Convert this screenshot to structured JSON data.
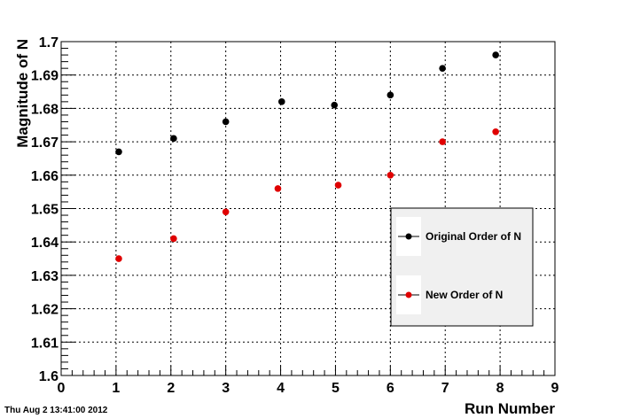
{
  "timestamp": "Thu Aug  2 13:41:00 2012",
  "chart_data": {
    "type": "scatter",
    "title": "",
    "xlabel": "Run Number",
    "ylabel": "Magnitude of N",
    "xlim": [
      0,
      9
    ],
    "ylim": [
      1.6,
      1.7
    ],
    "x_ticks": [
      "0",
      "1",
      "2",
      "3",
      "4",
      "5",
      "6",
      "7",
      "8",
      "9"
    ],
    "y_ticks": [
      "1.6",
      "1.61",
      "1.62",
      "1.63",
      "1.64",
      "1.65",
      "1.66",
      "1.67",
      "1.68",
      "1.69",
      "1.7"
    ],
    "grid": true,
    "legend_position": "right",
    "series": [
      {
        "name": "Original Order of N",
        "color": "#000000",
        "x": [
          1.05,
          2.05,
          3.0,
          4.02,
          4.98,
          6.0,
          6.95,
          7.92
        ],
        "y": [
          1.667,
          1.671,
          1.676,
          1.682,
          1.681,
          1.684,
          1.692,
          1.696
        ]
      },
      {
        "name": "New Order of N",
        "color": "#e00000",
        "x": [
          1.05,
          2.05,
          3.0,
          3.95,
          5.05,
          6.0,
          6.95,
          7.92
        ],
        "y": [
          1.635,
          1.641,
          1.649,
          1.656,
          1.657,
          1.66,
          1.67,
          1.673
        ]
      }
    ]
  }
}
